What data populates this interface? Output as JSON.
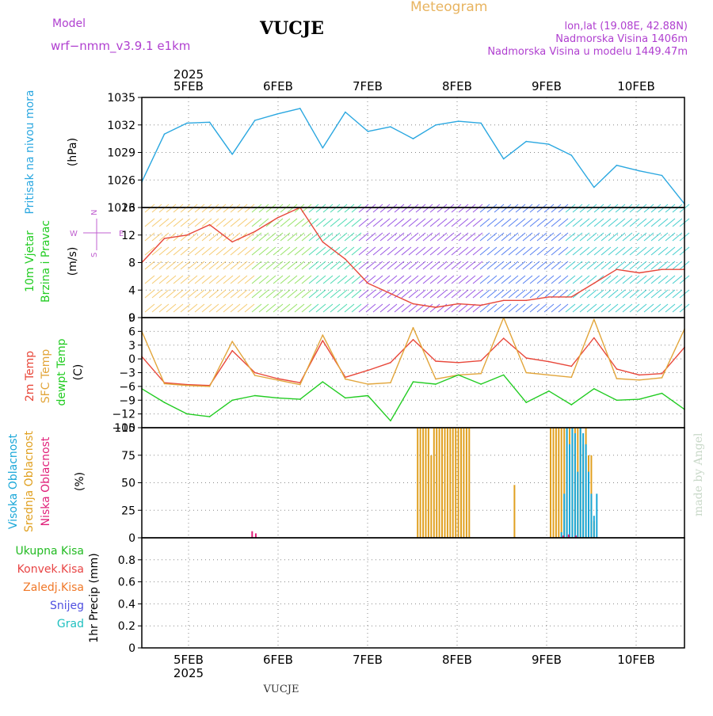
{
  "header": {
    "model_label": "Model",
    "model_name": "wrf−nmm_v3.9.1  e1km",
    "station": "VUCJE",
    "product": "Meteogram",
    "coords": "lon,lat (19.08E, 42.88N)",
    "elevation": "Nadmorska Visina 1406m",
    "model_elevation": "Nadmorska Visina u modelu 1449.47m",
    "footer_station": "VUCJE",
    "watermark": "made by Angel"
  },
  "colors": {
    "pressure": "#2aa7e0",
    "temp2m": "#e8473a",
    "sfc_temp": "#e2a53a",
    "dewpoint": "#22cc22",
    "high_cloud": "#1aa7d8",
    "mid_cloud": "#e0a020",
    "low_cloud": "#e0207a",
    "header_purple": "#b040d0",
    "meteogram_orange": "#e8b460",
    "wind_arrow_legend": "#c060d0"
  },
  "chart_data": [
    {
      "type": "line",
      "panel": "pressure",
      "ylabel": [
        "Pritisak na nivou mora",
        "(hPa)"
      ],
      "ylim": [
        1023,
        1035
      ],
      "yticks": [
        "1035",
        "1032",
        "1029",
        "1026",
        "1023"
      ],
      "x_day_offset": [
        0,
        0.25,
        0.5,
        0.75,
        1,
        1.25,
        1.5,
        1.75,
        2,
        2.25,
        2.5,
        2.75,
        3,
        3.25,
        3.5,
        3.75,
        4,
        4.25,
        4.5,
        4.75,
        5,
        5.25,
        5.5,
        5.75,
        6
      ],
      "series": [
        {
          "color_key": "pressure",
          "values": [
            1025.8,
            1031.0,
            1032.2,
            1032.3,
            1028.8,
            1032.5,
            1033.2,
            1033.8,
            1029.5,
            1033.4,
            1031.3,
            1031.8,
            1030.5,
            1032.0,
            1032.4,
            1032.2,
            1028.3,
            1030.2,
            1029.9,
            1028.7,
            1025.2,
            1027.6,
            1027.0,
            1026.5,
            1023.4
          ]
        }
      ]
    },
    {
      "type": "line",
      "panel": "wind",
      "ylabel": [
        "10m Vjetar",
        "Brzina i Pravac",
        "(m/s)"
      ],
      "ylim": [
        0,
        16
      ],
      "yticks": [
        "16",
        "12",
        "8",
        "4",
        "0"
      ],
      "direction_legend": [
        "N",
        "W",
        "E",
        "S"
      ],
      "x_day_offset": [
        0,
        0.25,
        0.5,
        0.75,
        1,
        1.25,
        1.5,
        1.75,
        2,
        2.25,
        2.5,
        2.75,
        3,
        3.25,
        3.5,
        3.75,
        4,
        4.25,
        4.5,
        4.75,
        5,
        5.25,
        5.5,
        5.75,
        6
      ],
      "series": [
        {
          "color_key": "temp2m",
          "values": [
            8.0,
            11.5,
            12.0,
            13.5,
            11.0,
            12.5,
            14.5,
            16.0,
            11.0,
            8.5,
            5.0,
            3.5,
            2.0,
            1.5,
            2.0,
            1.8,
            2.5,
            2.5,
            3.0,
            3.0,
            5.0,
            7.0,
            6.5,
            7.0,
            7.0
          ]
        }
      ]
    },
    {
      "type": "line",
      "panel": "temperature",
      "ylabel": [
        "2m Temp",
        "SFC Temp",
        "dewpt Temp",
        "(C)"
      ],
      "ylim": [
        -15,
        9
      ],
      "yticks": [
        "9",
        "6",
        "3",
        "0",
        "−3",
        "−6",
        "−9",
        "−12",
        "−15"
      ],
      "x_day_offset": [
        0,
        0.25,
        0.5,
        0.75,
        1,
        1.25,
        1.5,
        1.75,
        2,
        2.25,
        2.5,
        2.75,
        3,
        3.25,
        3.5,
        3.75,
        4,
        4.25,
        4.5,
        4.75,
        5,
        5.25,
        5.5,
        5.75,
        6
      ],
      "series": [
        {
          "name": "2m Temp",
          "color_key": "temp2m",
          "values": [
            0.5,
            -5.2,
            -5.6,
            -5.8,
            1.8,
            -3.0,
            -4.3,
            -5.2,
            4.0,
            -4.0,
            -2.5,
            -0.8,
            4.2,
            -0.5,
            -0.8,
            -0.4,
            4.5,
            0.2,
            -0.6,
            -1.6,
            4.6,
            -2.2,
            -3.5,
            -3.2,
            2.5
          ]
        },
        {
          "name": "SFC Temp",
          "color_key": "sfc_temp",
          "values": [
            6.0,
            -5.4,
            -5.8,
            -6.0,
            3.8,
            -3.6,
            -4.6,
            -5.6,
            5.2,
            -4.4,
            -5.5,
            -5.2,
            6.8,
            -4.4,
            -3.5,
            -3.2,
            9.0,
            -3.0,
            -3.5,
            -4.0,
            8.6,
            -4.3,
            -4.6,
            -4.1,
            6.5
          ]
        },
        {
          "name": "dewpt Temp",
          "color_key": "dewpoint",
          "values": [
            -6.5,
            -9.5,
            -12.0,
            -12.6,
            -9.0,
            -8.0,
            -8.5,
            -8.8,
            -5.0,
            -8.5,
            -8.0,
            -13.5,
            -5.0,
            -5.5,
            -3.5,
            -5.5,
            -3.5,
            -9.5,
            -7.0,
            -10.0,
            -6.5,
            -9.0,
            -8.8,
            -7.5,
            -11.0
          ]
        }
      ]
    },
    {
      "type": "bar",
      "panel": "cloud",
      "ylabel": [
        "Visoka Oblacnost",
        "Srednja Oblacnost",
        "Niska Oblacnost",
        "(%)"
      ],
      "ylim": [
        0,
        100
      ],
      "yticks": [
        "100",
        "75",
        "50",
        "25",
        "0"
      ],
      "series": [
        {
          "name": "Srednja Oblacnost",
          "color_key": "mid_cloud",
          "x_day_offset": [
            3.05,
            3.08,
            3.11,
            3.14,
            3.17,
            3.2,
            3.23,
            3.26,
            3.29,
            3.32,
            3.35,
            3.38,
            3.41,
            3.44,
            3.47,
            3.5,
            3.53,
            3.56,
            3.59,
            3.62,
            4.12,
            4.52,
            4.55,
            4.58,
            4.61,
            4.64,
            4.67,
            4.7,
            4.73,
            4.76,
            4.79,
            4.82,
            4.85,
            4.88,
            4.91,
            4.94,
            4.97,
            5.0
          ],
          "values": [
            100,
            100,
            100,
            100,
            100,
            75,
            100,
            100,
            100,
            100,
            100,
            100,
            100,
            100,
            100,
            100,
            100,
            100,
            100,
            100,
            48,
            100,
            100,
            100,
            100,
            100,
            100,
            100,
            100,
            100,
            100,
            100,
            100,
            85,
            100,
            75,
            75,
            15
          ]
        },
        {
          "name": "Visoka Oblacnost",
          "color_key": "high_cloud",
          "x_day_offset": [
            4.64,
            4.67,
            4.7,
            4.73,
            4.76,
            4.79,
            4.82,
            4.85,
            4.88,
            4.91,
            4.94,
            4.97,
            5.0,
            5.03
          ],
          "values": [
            5,
            40,
            100,
            85,
            100,
            95,
            60,
            100,
            95,
            85,
            60,
            40,
            20,
            40
          ]
        },
        {
          "name": "Niska Oblacnost",
          "color_key": "low_cloud",
          "x_day_offset": [
            1.22,
            1.26,
            4.66,
            4.72,
            4.8
          ],
          "values": [
            6,
            4,
            2,
            3,
            2
          ]
        }
      ]
    },
    {
      "type": "bar",
      "panel": "precipitation",
      "ylabel": [
        "1hr Precip (mm)"
      ],
      "legend": [
        "Ukupna Kisa",
        "Konvek.Kisa",
        "Zaledj.Kisa",
        "Snijeg",
        "Grad"
      ],
      "legend_colors": [
        "#22bb22",
        "#e84545",
        "#f07828",
        "#5050e0",
        "#20c0c0"
      ],
      "ylim": [
        0,
        1.0
      ],
      "yticks": [
        "0.8",
        "0.6",
        "0.4",
        "0.2",
        "0"
      ],
      "values": []
    }
  ],
  "x_axis": {
    "year": "2025",
    "days": [
      "5FEB",
      "6FEB",
      "7FEB",
      "8FEB",
      "9FEB",
      "10FEB"
    ]
  }
}
